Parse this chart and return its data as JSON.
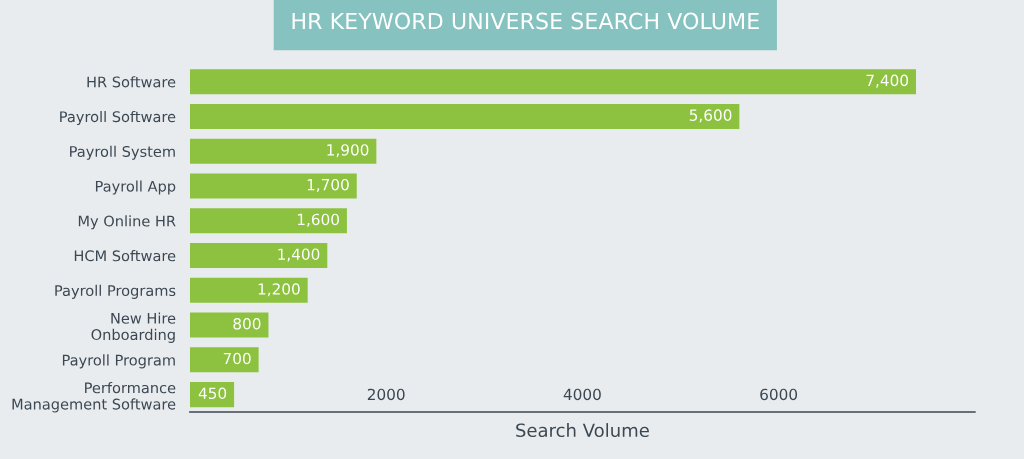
{
  "chart_data": {
    "type": "bar",
    "orientation": "horizontal",
    "title": "HR KEYWORD UNIVERSE SEARCH VOLUME",
    "xlabel": "Search Volume",
    "categories": [
      "HR Software",
      "Payroll Software",
      "Payroll System",
      "Payroll App",
      "My Online HR",
      "HCM Software",
      "Payroll Programs",
      "New Hire\nOnboarding",
      "Payroll Program",
      "Performance\nManagement Software"
    ],
    "values": [
      7400,
      5600,
      1900,
      1700,
      1600,
      1400,
      1200,
      800,
      700,
      450
    ],
    "value_labels": [
      "7,400",
      "5,600",
      "1,900",
      "1,700",
      "1,600",
      "1,400",
      "1,200",
      "800",
      "700",
      "450"
    ],
    "color": "#8cc23f",
    "xlim": [
      0,
      8000
    ],
    "xticks": [
      2000,
      4000,
      6000
    ],
    "grid": false,
    "legend": false
  }
}
